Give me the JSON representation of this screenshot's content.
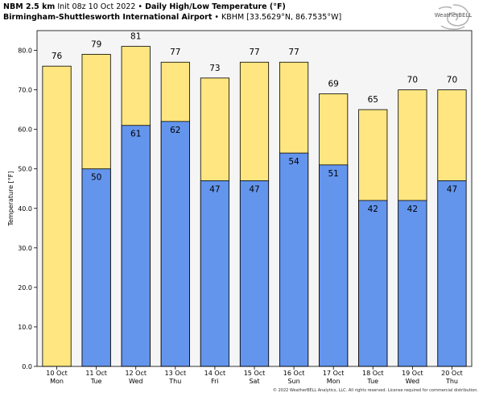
{
  "header": {
    "line1": {
      "model": "NBM 2.5 km",
      "init": "Init 08z 10 Oct 2022",
      "sep": "•",
      "title": "Daily High/Low Temperature (°F)"
    },
    "line2": {
      "station": "Birmingham-Shuttlesworth International Airport",
      "sep": "•",
      "location": "KBHM [33.5629°N, 86.7535°W]"
    }
  },
  "logo": {
    "text": "WeatherBELL",
    "icon": "weatherbell-swirl-logo"
  },
  "copyright": "© 2022 WeatherBELL Analytics, LLC. All rights reserved. License required for commercial distribution.",
  "colors": {
    "high": "#FFE680",
    "low": "#6495ED",
    "plot_bg": "#F5F5F5",
    "bar_edge": "#000000"
  },
  "chart_data": {
    "type": "bar",
    "ylabel": "Temperature [°F]",
    "ylim": [
      0,
      85
    ],
    "yticks": [
      "0.0",
      "10.0",
      "20.0",
      "30.0",
      "40.0",
      "50.0",
      "60.0",
      "70.0",
      "80.0"
    ],
    "categories": [
      [
        "10 Oct",
        "Mon"
      ],
      [
        "11 Oct",
        "Tue"
      ],
      [
        "12 Oct",
        "Wed"
      ],
      [
        "13 Oct",
        "Thu"
      ],
      [
        "14 Oct",
        "Fri"
      ],
      [
        "15 Oct",
        "Sat"
      ],
      [
        "16 Oct",
        "Sun"
      ],
      [
        "17 Oct",
        "Mon"
      ],
      [
        "18 Oct",
        "Tue"
      ],
      [
        "19 Oct",
        "Wed"
      ],
      [
        "20 Oct",
        "Thu"
      ]
    ],
    "series": [
      {
        "key": "high",
        "values": [
          76,
          79,
          81,
          77,
          73,
          77,
          77,
          69,
          65,
          70,
          70
        ]
      },
      {
        "key": "low",
        "values": [
          null,
          50,
          61,
          62,
          47,
          47,
          54,
          51,
          42,
          42,
          47
        ]
      }
    ],
    "grid": false,
    "legend": "none"
  }
}
